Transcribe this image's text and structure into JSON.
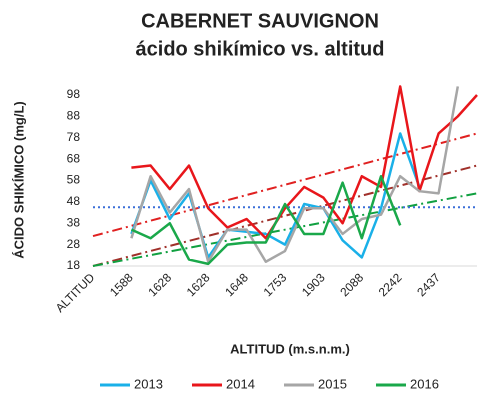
{
  "chart_data": {
    "type": "line",
    "title": [
      "CABERNET SAUVIGNON",
      "ácido shikímico vs. altitud"
    ],
    "xlabel": "ALTITUD (m.s.n.m.)",
    "ylabel": "ÁCIDO SHIKÍMICO (mg/L)",
    "categories": [
      "ALTITUD",
      null,
      "1588",
      null,
      "1628",
      null,
      "1628",
      null,
      "1648",
      null,
      "1753",
      null,
      "1903",
      null,
      "2088",
      null,
      "2242",
      null,
      "2437",
      null,
      null
    ],
    "series": [
      {
        "name": "2013",
        "color": "#1ab0e8",
        "values": [
          null,
          null,
          33,
          58,
          40,
          52,
          22,
          35,
          34,
          33,
          28,
          47,
          45,
          30,
          22,
          45,
          80,
          55,
          null,
          null,
          null
        ]
      },
      {
        "name": "2014",
        "color": "#e8161b",
        "values": [
          null,
          null,
          64,
          65,
          54,
          65,
          45,
          36,
          40,
          31,
          45,
          55,
          50,
          38,
          60,
          55,
          102,
          53,
          80,
          88,
          98
        ]
      },
      {
        "name": "2015",
        "color": "#a6a6a6",
        "values": [
          null,
          null,
          31,
          60,
          43,
          54,
          20,
          35,
          35,
          20,
          25,
          45,
          45,
          33,
          40,
          42,
          60,
          53,
          52,
          102,
          null
        ]
      },
      {
        "name": "2016",
        "color": "#1aa84a",
        "values": [
          null,
          null,
          35,
          31,
          38,
          21,
          19,
          28,
          29,
          29,
          47,
          33,
          33,
          57,
          31,
          60,
          37,
          null,
          null,
          null,
          null
        ]
      }
    ],
    "trendlines": [
      {
        "color": "#e02020",
        "values": [
          32,
          80
        ]
      },
      {
        "color": "#a0302a",
        "values": [
          18,
          65
        ]
      },
      {
        "color": "#10a040",
        "values": [
          18,
          52
        ]
      },
      {
        "color": "#3a6fd8",
        "values": [
          45.5,
          45.5
        ]
      }
    ],
    "ylim": [
      18,
      98
    ],
    "yticks": [
      18,
      28,
      38,
      48,
      58,
      68,
      78,
      88,
      98
    ],
    "legend": "bottom"
  }
}
